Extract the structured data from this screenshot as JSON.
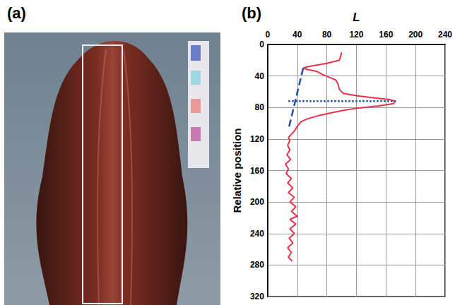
{
  "panel_labels": [
    "(a)",
    "(b)"
  ],
  "chart_data": {
    "type": "line",
    "xlabel": "L",
    "ylabel": "Relative position",
    "xlim": [
      0,
      240
    ],
    "xticks": [
      0,
      40,
      80,
      120,
      160,
      200,
      240
    ],
    "ylim": [
      0,
      320
    ],
    "yticks": [
      0,
      40,
      80,
      120,
      160,
      200,
      240,
      280,
      320
    ],
    "grid": true,
    "series": [
      {
        "color": "#e8334a",
        "line_style": "solid",
        "x": [
          100,
          99,
          97,
          80,
          55,
          48,
          55,
          66,
          74,
          84,
          92,
          95,
          97,
          102,
          120,
          145,
          165,
          173,
          170,
          150,
          120,
          100,
          85,
          70,
          55,
          45,
          40,
          36,
          32,
          28,
          30,
          27,
          30,
          26,
          31,
          24,
          28,
          25,
          32,
          27,
          34,
          28,
          36,
          30,
          38,
          32,
          40,
          30,
          38,
          30,
          36,
          29,
          34,
          27,
          32,
          28,
          33
        ],
        "values": [
          10,
          14,
          20,
          24,
          28,
          30,
          32,
          34,
          38,
          42,
          45,
          50,
          57,
          62,
          65,
          68,
          70,
          72,
          75,
          78,
          81,
          84,
          87,
          90,
          94,
          98,
          104,
          110,
          114,
          118,
          122,
          128,
          134,
          140,
          146,
          152,
          158,
          164,
          170,
          176,
          182,
          188,
          194,
          200,
          206,
          212,
          218,
          222,
          228,
          234,
          240,
          246,
          252,
          258,
          264,
          270,
          275
        ]
      },
      {
        "color": "#1f4fa0",
        "line_style": "dashed",
        "x": [
          48,
          28
        ],
        "values": [
          30,
          108
        ]
      },
      {
        "color": "#1f4fa0",
        "line_style": "dotted",
        "x": [
          28,
          173
        ],
        "values": [
          72,
          72
        ]
      }
    ]
  }
}
